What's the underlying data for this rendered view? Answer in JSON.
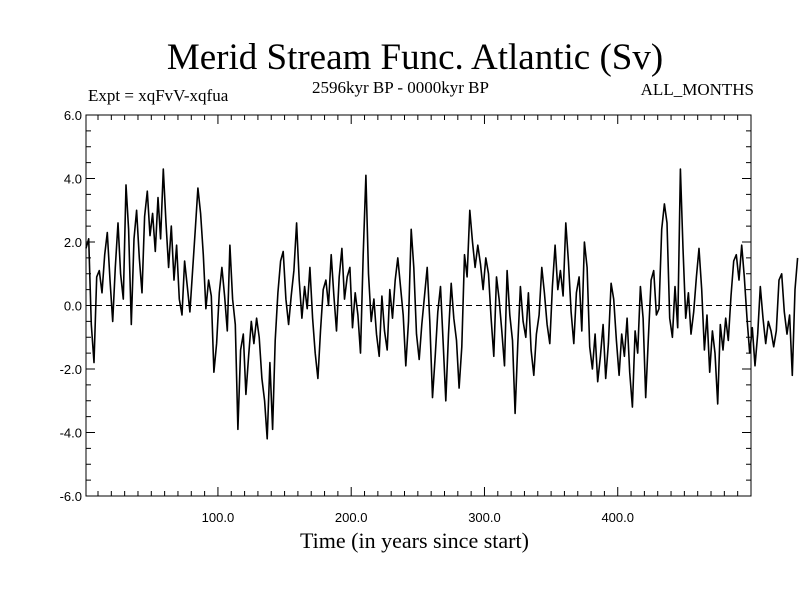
{
  "chart_data": {
    "type": "line",
    "title": "Merid Stream Func. Atlantic (Sv)",
    "subtitle_left": "Expt = xqFvV-xqfua",
    "subtitle_center": "2596kyr BP - 0000kyr BP",
    "subtitle_right": "ALL_MONTHS",
    "xlabel": "Time (in years since start)",
    "ylabel": "",
    "xlim": [
      1,
      500
    ],
    "ylim": [
      -6.0,
      6.0
    ],
    "x_ticks": [
      100,
      200,
      300,
      400
    ],
    "x_tick_labels": [
      "100.0",
      "200.0",
      "300.0",
      "400.0"
    ],
    "y_ticks": [
      -6,
      -4,
      -2,
      0,
      2,
      4,
      6
    ],
    "y_tick_labels": [
      "-6.0",
      "-4.0",
      "-2.0",
      "0.0",
      "2.0",
      "4.0",
      "6.0"
    ],
    "reference_line": 0.0,
    "series": [
      {
        "name": "Merid Stream Func. Atlantic",
        "x_start": 1,
        "x_step": 2,
        "values": [
          1.8,
          2.1,
          -0.6,
          -1.8,
          0.9,
          1.1,
          0.4,
          1.6,
          2.3,
          0.8,
          -0.5,
          1.2,
          2.6,
          1.0,
          0.2,
          3.8,
          2.4,
          -0.6,
          2.1,
          3.0,
          1.5,
          0.4,
          2.8,
          3.6,
          2.2,
          2.9,
          1.7,
          3.4,
          2.1,
          4.3,
          2.6,
          1.2,
          2.5,
          0.8,
          1.9,
          0.2,
          -0.3,
          1.4,
          0.6,
          -0.2,
          1.1,
          2.4,
          3.7,
          2.9,
          1.6,
          -0.1,
          0.8,
          0.3,
          -2.1,
          -1.2,
          0.4,
          1.2,
          0.3,
          -0.8,
          1.9,
          0.2,
          -0.6,
          -3.9,
          -1.4,
          -0.9,
          -2.8,
          -1.6,
          -0.5,
          -1.2,
          -0.4,
          -1.0,
          -2.3,
          -3.0,
          -4.2,
          -1.8,
          -3.9,
          -1.1,
          0.4,
          1.4,
          1.7,
          0.2,
          -0.6,
          0.3,
          1.1,
          2.6,
          0.8,
          -0.4,
          0.6,
          -0.1,
          1.2,
          -0.4,
          -1.5,
          -2.3,
          -0.8,
          0.5,
          0.8,
          0.0,
          1.6,
          0.3,
          -0.8,
          0.9,
          1.8,
          0.2,
          0.9,
          1.2,
          -0.7,
          0.4,
          -0.3,
          -1.5,
          1.6,
          4.1,
          1.0,
          -0.5,
          0.2,
          -0.9,
          -1.6,
          0.3,
          -0.8,
          -1.4,
          0.5,
          -0.4,
          0.8,
          1.5,
          0.6,
          -0.3,
          -1.9,
          -0.5,
          2.4,
          1.2,
          -0.9,
          -1.7,
          -0.6,
          0.3,
          1.2,
          -0.5,
          -2.9,
          -1.6,
          -0.2,
          0.6,
          -1.2,
          -3.0,
          -0.9,
          0.7,
          -0.4,
          -1.1,
          -2.6,
          -1.3,
          1.6,
          0.9,
          3.0,
          2.0,
          1.2,
          1.9,
          1.3,
          0.5,
          1.5,
          1.0,
          -0.4,
          -1.6,
          0.9,
          0.2,
          -0.8,
          -1.9,
          1.1,
          -0.3,
          -1.1,
          -3.4,
          -1.2,
          0.6,
          -0.5,
          -1.0,
          0.4,
          -1.4,
          -2.2,
          -0.9,
          -0.3,
          1.2,
          0.4,
          -0.6,
          -1.2,
          0.6,
          1.9,
          0.5,
          1.1,
          0.3,
          2.6,
          1.4,
          -0.2,
          -1.2,
          0.4,
          0.9,
          -0.8,
          2.0,
          1.2,
          -1.3,
          -2.0,
          -0.9,
          -2.4,
          -1.6,
          -0.6,
          -2.3,
          -1.2,
          0.7,
          0.2,
          -1.1,
          -2.2,
          -0.9,
          -1.6,
          -0.4,
          -2.1,
          -3.2,
          -0.8,
          -1.5,
          0.6,
          -0.4,
          -2.9,
          -1.0,
          0.8,
          1.1,
          -0.3,
          -0.1,
          2.4,
          3.2,
          2.6,
          -0.4,
          -1.0,
          0.6,
          -0.7,
          4.3,
          1.8,
          -0.4,
          0.4,
          -0.9,
          -0.2,
          0.9,
          1.8,
          0.5,
          -1.4,
          -0.3,
          -2.1,
          -0.8,
          -1.5,
          -3.1,
          -0.6,
          -1.4,
          -0.4,
          -1.1,
          0.3,
          1.4,
          1.6,
          0.8,
          1.9,
          0.9,
          -0.4,
          -1.5,
          -0.7,
          -1.9,
          -0.9,
          0.6,
          -0.4,
          -1.2,
          -0.5,
          -0.8,
          -1.3,
          -0.8,
          0.8,
          1.0,
          -0.2,
          -0.9,
          -0.3,
          -2.2,
          0.5,
          1.5
        ],
        "color": "#000000"
      }
    ]
  }
}
